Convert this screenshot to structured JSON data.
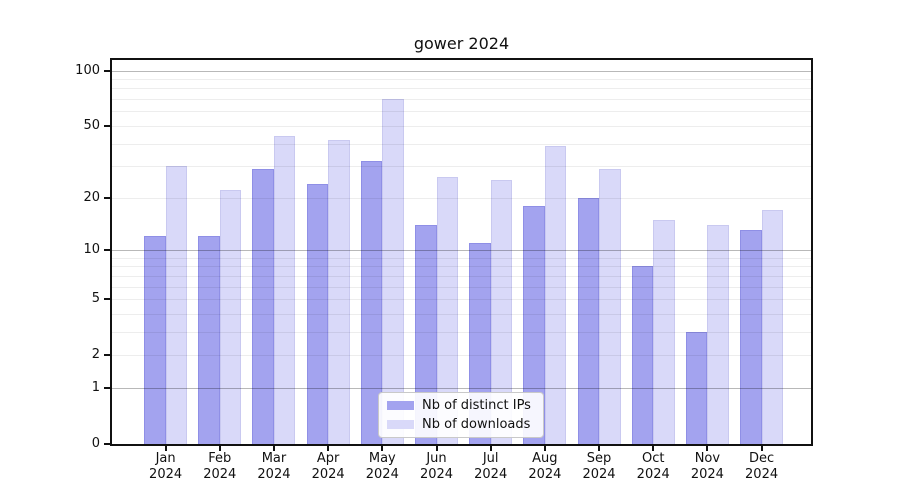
{
  "chart_data": {
    "type": "bar",
    "title": "gower 2024",
    "categories": [
      "Jan",
      "Feb",
      "Mar",
      "Apr",
      "May",
      "Jun",
      "Jul",
      "Aug",
      "Sep",
      "Oct",
      "Nov",
      "Dec"
    ],
    "category_year": "2024",
    "series": [
      {
        "name": "Nb of distinct IPs",
        "color": "#a3a3ef",
        "values": [
          12,
          12,
          29,
          24,
          32,
          14,
          11,
          18,
          20,
          8,
          3,
          13
        ]
      },
      {
        "name": "Nb of downloads",
        "color": "#d9d9f9",
        "values": [
          30,
          22,
          44,
          42,
          70,
          26,
          25,
          39,
          29,
          15,
          14,
          17
        ]
      }
    ],
    "xlabel": "",
    "ylabel": "",
    "y_scale": "log1p",
    "ylim": [
      0,
      114
    ],
    "y_ticks": [
      0,
      1,
      2,
      5,
      10,
      20,
      50,
      100
    ],
    "y_major_gridlines": [
      1,
      10,
      100
    ],
    "y_minor_gridlines": [
      2,
      3,
      4,
      5,
      6,
      7,
      8,
      9,
      20,
      30,
      40,
      50,
      60,
      70,
      80,
      90
    ],
    "grid": "horizontal",
    "legend_position": "lower-center"
  }
}
